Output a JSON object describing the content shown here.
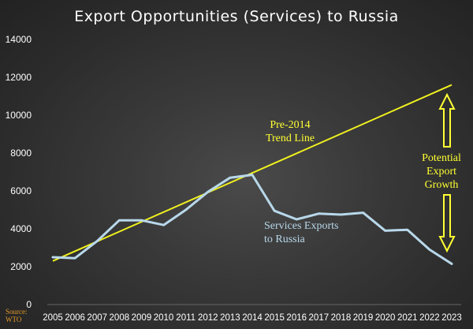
{
  "chart_data": {
    "type": "line",
    "title": "Export Opportunities (Services) to Russia",
    "xlabel": "",
    "ylabel": "",
    "x": [
      2005,
      2006,
      2007,
      2008,
      2009,
      2010,
      2011,
      2012,
      2013,
      2014,
      2015,
      2016,
      2017,
      2018,
      2019,
      2020,
      2021,
      2022,
      2023
    ],
    "x_tick_labels": [
      "2005",
      "2006",
      "2007",
      "2008",
      "2009",
      "2010",
      "2011",
      "2012",
      "2013",
      "2014",
      "2015",
      "2016",
      "2017",
      "2018",
      "2019",
      "2020",
      "2021",
      "2022",
      "2023"
    ],
    "y_tick_labels": [
      "0",
      "2000",
      "4000",
      "6000",
      "8000",
      "10000",
      "12000",
      "14000"
    ],
    "ylim": [
      0,
      14000
    ],
    "grid": false,
    "series": [
      {
        "name": "Services Exports to Russia",
        "color": "#b8d8ea",
        "values": [
          2500,
          2450,
          3350,
          4450,
          4450,
          4200,
          5000,
          5950,
          6700,
          6850,
          4950,
          4500,
          4800,
          4750,
          4850,
          3900,
          3950,
          2900,
          2150
        ]
      }
    ],
    "trend_line": {
      "color": "#f0f020",
      "from": {
        "x": 2005,
        "y": 2300
      },
      "to": {
        "x": 2023,
        "y": 11600
      }
    },
    "annotations": {
      "trend_label": [
        "Pre-2014",
        "Trend Line"
      ],
      "services_label": [
        "Services Exports",
        "to Russia"
      ],
      "growth_label": [
        "Potential",
        "Export",
        "Growth"
      ]
    },
    "source_label": [
      "Source:",
      "WTO"
    ]
  }
}
